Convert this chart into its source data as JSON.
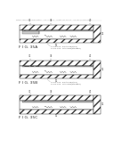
{
  "fig_labels": [
    "F I G. 35A",
    "F I G. 35B",
    "F I G. 35C"
  ],
  "bg_color": "#ffffff",
  "hatch_color": "#666666",
  "line_color": "#333333",
  "header_color": "#aaaaaa",
  "caption_color": "#555555",
  "header": "Patent Application Publication    Jun. 3, 2014    Sheet 131 of 134    US 2014/0144602 A1",
  "captions_ab": [
    "S-101-103 : Electrode(Step)",
    "S-101-103 : GAS Hole(Stepped)"
  ]
}
